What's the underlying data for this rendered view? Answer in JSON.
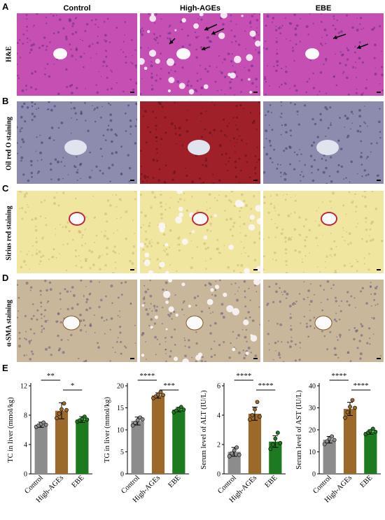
{
  "columns": [
    "Control",
    "High-AGEs",
    "EBE"
  ],
  "panel_letters": [
    "A",
    "B",
    "C",
    "D",
    "E"
  ],
  "rows": [
    {
      "letter": "A",
      "label": "H&E"
    },
    {
      "letter": "B",
      "label": "Oil red  O staining"
    },
    {
      "letter": "C",
      "label": "Sirius red staining"
    },
    {
      "letter": "D",
      "label": "α-SMA staining"
    }
  ],
  "stain_colors": {
    "he": "#c64fb3",
    "oil": "#8e8cae",
    "oil_high": "#a0202a",
    "sirius": "#f1e6a0",
    "sma": "#c8b79a"
  },
  "bar_colors": {
    "Control": "#8c8c8c",
    "High-AGEs": "#9b6a2a",
    "EBE": "#1e7a1e"
  },
  "chart_data": [
    {
      "type": "bar",
      "categories": [
        "Control",
        "High-AGEs",
        "EBE"
      ],
      "values": [
        6.7,
        8.6,
        7.4
      ],
      "errors": [
        0.35,
        1.1,
        0.4
      ],
      "points": [
        [
          6.4,
          6.6,
          6.8,
          7.0,
          6.7
        ],
        [
          7.6,
          8.2,
          8.8,
          9.6,
          8.7
        ],
        [
          7.1,
          7.3,
          7.5,
          7.8,
          7.4
        ]
      ],
      "ylabel": "TC in liver (mmol/kg)",
      "ylim": [
        0,
        12
      ],
      "yticks": [
        0,
        4,
        8,
        12
      ],
      "significance": [
        {
          "from": 0,
          "to": 1,
          "label": "**"
        },
        {
          "from": 1,
          "to": 2,
          "label": "*"
        }
      ]
    },
    {
      "type": "bar",
      "categories": [
        "Control",
        "High-AGEs",
        "EBE"
      ],
      "values": [
        12.0,
        17.8,
        14.6
      ],
      "errors": [
        0.9,
        0.6,
        0.5
      ],
      "points": [
        [
          11.0,
          11.6,
          12.2,
          12.8,
          12.4
        ],
        [
          17.2,
          17.6,
          18.0,
          18.6,
          17.9
        ],
        [
          14.0,
          14.4,
          14.8,
          15.2,
          14.6
        ]
      ],
      "ylabel": "TG in liver (mmol/kg)",
      "ylim": [
        0,
        20
      ],
      "yticks": [
        0,
        5,
        10,
        15,
        20
      ],
      "significance": [
        {
          "from": 0,
          "to": 1,
          "label": "****"
        },
        {
          "from": 1,
          "to": 2,
          "label": "***"
        }
      ]
    },
    {
      "type": "bar",
      "categories": [
        "Control",
        "High-AGEs",
        "EBE"
      ],
      "values": [
        1.5,
        4.1,
        2.2
      ],
      "errors": [
        0.3,
        0.45,
        0.4
      ],
      "points": [
        [
          1.2,
          1.4,
          1.6,
          1.8,
          1.3
        ],
        [
          3.7,
          4.0,
          4.4,
          4.9,
          3.9
        ],
        [
          1.7,
          2.0,
          2.4,
          2.8,
          2.1
        ]
      ],
      "ylabel": "Serum level of ALT (IU/L)",
      "ylim": [
        0,
        6
      ],
      "yticks": [
        0,
        2,
        4,
        6
      ],
      "significance": [
        {
          "from": 0,
          "to": 1,
          "label": "****"
        },
        {
          "from": 1,
          "to": 2,
          "label": "****"
        }
      ]
    },
    {
      "type": "bar",
      "categories": [
        "Control",
        "High-AGEs",
        "EBE"
      ],
      "values": [
        15.5,
        29.5,
        19.0
      ],
      "errors": [
        1.5,
        3.0,
        1.0
      ],
      "points": [
        [
          13.5,
          14.8,
          16.0,
          17.0,
          15.4
        ],
        [
          25.5,
          28.0,
          30.5,
          33.5,
          30.0
        ],
        [
          18.0,
          18.8,
          19.5,
          20.5,
          19.1
        ]
      ],
      "ylabel": "Serum level of AST (IU/L)",
      "ylim": [
        0,
        40
      ],
      "yticks": [
        0,
        10,
        20,
        30,
        40
      ],
      "significance": [
        {
          "from": 0,
          "to": 1,
          "label": "****"
        },
        {
          "from": 1,
          "to": 2,
          "label": "****"
        }
      ]
    }
  ]
}
